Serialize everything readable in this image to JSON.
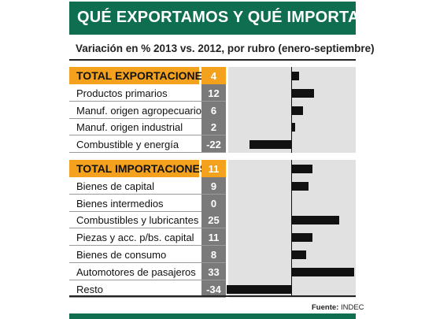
{
  "title": "QUÉ EXPORTAMOS Y QUÉ IMPORTAMOS",
  "subtitle": "Variación en % 2013 vs. 2012, por rubro (enero-septiembre)",
  "source_label": "Fuente:",
  "source_value": "INDEC",
  "colors": {
    "brand_green": "#0f6e4f",
    "highlight_orange": "#f4a21e",
    "value_gray": "#7a7a7a",
    "bar": "#111111"
  },
  "chart_data": {
    "type": "bar",
    "orientation": "horizontal",
    "title": "QUÉ EXPORTAMOS Y QUÉ IMPORTAMOS",
    "subtitle": "Variación en % 2013 vs. 2012, por rubro (enero-septiembre)",
    "xlim": [
      -34,
      33
    ],
    "groups": [
      {
        "rows": [
          {
            "label": "TOTAL EXPORTACIONES",
            "value": 4,
            "display": "4",
            "total": true
          },
          {
            "label": "Productos primarios",
            "value": 12,
            "display": "12"
          },
          {
            "label": "Manuf. origen agropecuario",
            "value": 6,
            "display": "6"
          },
          {
            "label": "Manuf. origen industrial",
            "value": 2,
            "display": "2"
          },
          {
            "label": "Combustible y energía",
            "value": -22,
            "display": "-22"
          }
        ]
      },
      {
        "rows": [
          {
            "label": "TOTAL IMPORTACIONES",
            "value": 11,
            "display": "11",
            "total": true
          },
          {
            "label": "Bienes de capital",
            "value": 9,
            "display": "9"
          },
          {
            "label": "Bienes intermedios",
            "value": 0,
            "display": "0"
          },
          {
            "label": "Combustibles y lubricantes",
            "value": 25,
            "display": "25"
          },
          {
            "label": "Piezas y acc. p/bs. capital",
            "value": 11,
            "display": "11"
          },
          {
            "label": "Bienes de consumo",
            "value": 8,
            "display": "8"
          },
          {
            "label": "Automotores de pasajeros",
            "value": 33,
            "display": "33"
          },
          {
            "label": "Resto",
            "value": -34,
            "display": "-34"
          }
        ]
      }
    ]
  }
}
